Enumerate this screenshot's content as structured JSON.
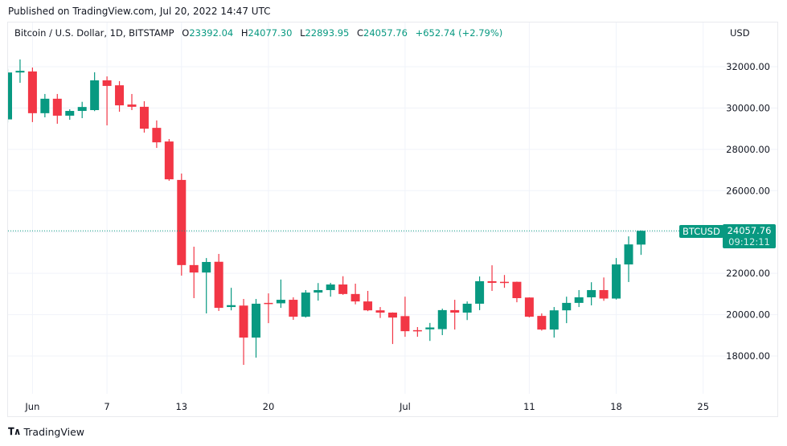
{
  "header": {
    "published": "Published on TradingView.com, Jul 20, 2022 14:47 UTC"
  },
  "legend": {
    "symbol": "Bitcoin / U.S. Dollar, 1D, BITSTAMP",
    "open_label": "O",
    "open": "23392.04",
    "high_label": "H",
    "high": "24077.30",
    "low_label": "L",
    "low": "22893.95",
    "close_label": "C",
    "close": "24057.76",
    "change": "+652.74 (+2.79%)"
  },
  "price_axis": {
    "currency": "USD",
    "ticks": [
      "32000.00",
      "30000.00",
      "28000.00",
      "26000.00",
      "22000.00",
      "20000.00",
      "18000.00"
    ]
  },
  "last_price": {
    "symbol": "BTCUSD",
    "price": "24057.76",
    "countdown": "09:12:11"
  },
  "footer": {
    "brand": "TradingView"
  },
  "colors": {
    "up": "#089981",
    "down": "#f23645",
    "grid": "#f0f3fa"
  },
  "chart_data": {
    "type": "candlestick",
    "title": "Bitcoin / U.S. Dollar, 1D, BITSTAMP",
    "ylim": [
      16500,
      33500
    ],
    "grid": true,
    "x_ticks": [
      {
        "label": "Jun",
        "date": "2022-06-01"
      },
      {
        "label": "7",
        "date": "2022-06-07"
      },
      {
        "label": "13",
        "date": "2022-06-13"
      },
      {
        "label": "20",
        "date": "2022-06-20"
      },
      {
        "label": "Jul",
        "date": "2022-07-01"
      },
      {
        "label": "11",
        "date": "2022-07-11"
      },
      {
        "label": "18",
        "date": "2022-07-18"
      },
      {
        "label": "25",
        "date": "2022-07-25"
      }
    ],
    "y_ticks": [
      18000,
      20000,
      22000,
      24000,
      26000,
      28000,
      30000,
      32000
    ],
    "candles": [
      {
        "date": "2022-05-30",
        "o": 29450,
        "h": 31900,
        "l": 29300,
        "c": 31720
      },
      {
        "date": "2022-05-31",
        "o": 31720,
        "h": 32350,
        "l": 31220,
        "c": 31800
      },
      {
        "date": "2022-06-01",
        "o": 31770,
        "h": 31960,
        "l": 29320,
        "c": 29750
      },
      {
        "date": "2022-06-02",
        "o": 29750,
        "h": 30680,
        "l": 29550,
        "c": 30450
      },
      {
        "date": "2022-06-03",
        "o": 30450,
        "h": 30680,
        "l": 29240,
        "c": 29630
      },
      {
        "date": "2022-06-04",
        "o": 29630,
        "h": 29940,
        "l": 29430,
        "c": 29860
      },
      {
        "date": "2022-06-05",
        "o": 29860,
        "h": 30300,
        "l": 29510,
        "c": 30050
      },
      {
        "date": "2022-06-06",
        "o": 29900,
        "h": 31730,
        "l": 29850,
        "c": 31340
      },
      {
        "date": "2022-06-07",
        "o": 31340,
        "h": 31530,
        "l": 29160,
        "c": 31070
      },
      {
        "date": "2022-06-08",
        "o": 31100,
        "h": 31300,
        "l": 29820,
        "c": 30130
      },
      {
        "date": "2022-06-09",
        "o": 30170,
        "h": 30680,
        "l": 29900,
        "c": 30060
      },
      {
        "date": "2022-06-10",
        "o": 30060,
        "h": 30330,
        "l": 28810,
        "c": 29000
      },
      {
        "date": "2022-06-11",
        "o": 29040,
        "h": 29400,
        "l": 28070,
        "c": 28340
      },
      {
        "date": "2022-06-12",
        "o": 28380,
        "h": 28500,
        "l": 26480,
        "c": 26550
      },
      {
        "date": "2022-06-13",
        "o": 26520,
        "h": 26830,
        "l": 21890,
        "c": 22400
      },
      {
        "date": "2022-06-14",
        "o": 22400,
        "h": 23290,
        "l": 20800,
        "c": 22040
      },
      {
        "date": "2022-06-15",
        "o": 22040,
        "h": 22740,
        "l": 20060,
        "c": 22550
      },
      {
        "date": "2022-06-16",
        "o": 22560,
        "h": 22940,
        "l": 20180,
        "c": 20330
      },
      {
        "date": "2022-06-17",
        "o": 20370,
        "h": 21300,
        "l": 20210,
        "c": 20460
      },
      {
        "date": "2022-06-18",
        "o": 20440,
        "h": 20760,
        "l": 17570,
        "c": 18890
      },
      {
        "date": "2022-06-19",
        "o": 18890,
        "h": 20760,
        "l": 17920,
        "c": 20530
      },
      {
        "date": "2022-06-20",
        "o": 20570,
        "h": 21030,
        "l": 19590,
        "c": 20550
      },
      {
        "date": "2022-06-21",
        "o": 20550,
        "h": 21700,
        "l": 20330,
        "c": 20720
      },
      {
        "date": "2022-06-22",
        "o": 20720,
        "h": 20840,
        "l": 19750,
        "c": 19900
      },
      {
        "date": "2022-06-23",
        "o": 19900,
        "h": 21190,
        "l": 19860,
        "c": 21070
      },
      {
        "date": "2022-06-24",
        "o": 21070,
        "h": 21530,
        "l": 20680,
        "c": 21190
      },
      {
        "date": "2022-06-25",
        "o": 21190,
        "h": 21540,
        "l": 20870,
        "c": 21460
      },
      {
        "date": "2022-06-26",
        "o": 21460,
        "h": 21860,
        "l": 20960,
        "c": 21000
      },
      {
        "date": "2022-06-27",
        "o": 21000,
        "h": 21500,
        "l": 20500,
        "c": 20640
      },
      {
        "date": "2022-06-28",
        "o": 20640,
        "h": 21150,
        "l": 20170,
        "c": 20210
      },
      {
        "date": "2022-06-29",
        "o": 20210,
        "h": 20370,
        "l": 19840,
        "c": 20100
      },
      {
        "date": "2022-06-30",
        "o": 20100,
        "h": 20110,
        "l": 18580,
        "c": 19860
      },
      {
        "date": "2022-07-01",
        "o": 19930,
        "h": 20870,
        "l": 18930,
        "c": 19200
      },
      {
        "date": "2022-07-02",
        "o": 19250,
        "h": 19400,
        "l": 18930,
        "c": 19200
      },
      {
        "date": "2022-07-03",
        "o": 19290,
        "h": 19600,
        "l": 18730,
        "c": 19380
      },
      {
        "date": "2022-07-04",
        "o": 19300,
        "h": 20290,
        "l": 19010,
        "c": 20220
      },
      {
        "date": "2022-07-05",
        "o": 20220,
        "h": 20720,
        "l": 19280,
        "c": 20100
      },
      {
        "date": "2022-07-06",
        "o": 20100,
        "h": 20640,
        "l": 19740,
        "c": 20530
      },
      {
        "date": "2022-07-07",
        "o": 20530,
        "h": 21850,
        "l": 20220,
        "c": 21620
      },
      {
        "date": "2022-07-08",
        "o": 21620,
        "h": 22390,
        "l": 21150,
        "c": 21540
      },
      {
        "date": "2022-07-09",
        "o": 21590,
        "h": 21920,
        "l": 21300,
        "c": 21560
      },
      {
        "date": "2022-07-10",
        "o": 21590,
        "h": 21600,
        "l": 20600,
        "c": 20800
      },
      {
        "date": "2022-07-11",
        "o": 20830,
        "h": 20840,
        "l": 19870,
        "c": 19900
      },
      {
        "date": "2022-07-12",
        "o": 19940,
        "h": 20060,
        "l": 19230,
        "c": 19280
      },
      {
        "date": "2022-07-13",
        "o": 19280,
        "h": 20370,
        "l": 18890,
        "c": 20210
      },
      {
        "date": "2022-07-14",
        "o": 20210,
        "h": 20870,
        "l": 19590,
        "c": 20570
      },
      {
        "date": "2022-07-15",
        "o": 20570,
        "h": 21190,
        "l": 20370,
        "c": 20840
      },
      {
        "date": "2022-07-16",
        "o": 20840,
        "h": 21570,
        "l": 20450,
        "c": 21190
      },
      {
        "date": "2022-07-17",
        "o": 21190,
        "h": 21800,
        "l": 20670,
        "c": 20780
      },
      {
        "date": "2022-07-18",
        "o": 20780,
        "h": 22740,
        "l": 20730,
        "c": 22430
      },
      {
        "date": "2022-07-19",
        "o": 22430,
        "h": 23790,
        "l": 21580,
        "c": 23400
      },
      {
        "date": "2022-07-20",
        "o": 23392.04,
        "h": 24077.3,
        "l": 22893.95,
        "c": 24057.76
      }
    ]
  }
}
